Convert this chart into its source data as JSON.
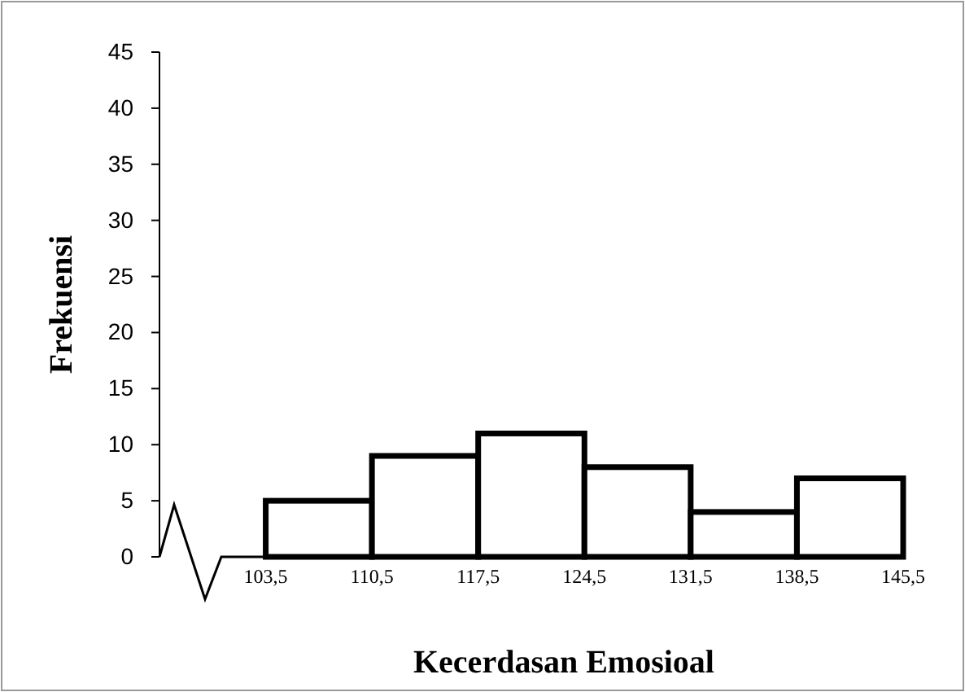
{
  "chart_data": {
    "type": "histogram",
    "xlabel": "Kecerdasan Emosioal",
    "ylabel": "Frekuensi",
    "bins": [
      103.5,
      110.5,
      117.5,
      124.5,
      131.5,
      138.5,
      145.5
    ],
    "values": [
      5,
      9,
      11,
      8,
      4,
      7
    ],
    "color": "#ffffff",
    "xlim": [
      96.5,
      145.5
    ],
    "xticks": [
      {
        "value": 103.5,
        "label": "103,5"
      },
      {
        "value": 110.5,
        "label": "110,5"
      },
      {
        "value": 117.5,
        "label": "117,5"
      },
      {
        "value": 124.5,
        "label": "124,5"
      },
      {
        "value": 131.5,
        "label": "131,5"
      },
      {
        "value": 138.5,
        "label": "138,5"
      },
      {
        "value": 145.5,
        "label": "145,5"
      }
    ],
    "ylim": [
      0,
      45
    ],
    "yticks": [
      0,
      5,
      10,
      15,
      20,
      25,
      30,
      35,
      40,
      45
    ],
    "grid": false
  }
}
